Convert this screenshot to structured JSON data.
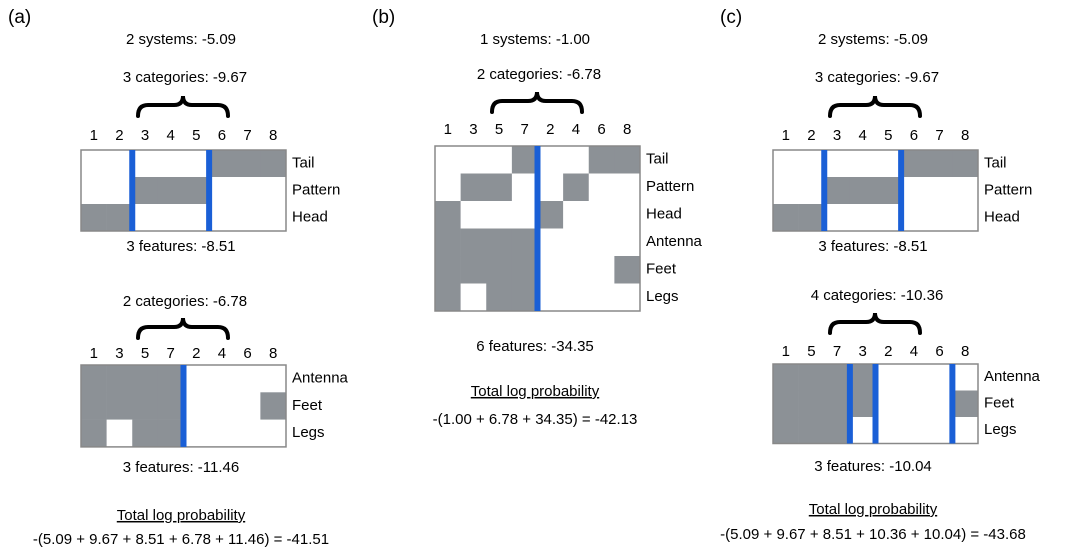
{
  "panels": [
    {
      "label": "(a)",
      "systems": "2 systems: -5.09",
      "blocks": [
        {
          "categories": "3 categories: -9.67",
          "columns": [
            1,
            2,
            3,
            4,
            5,
            6,
            7,
            8
          ],
          "groups": [
            2,
            3,
            3
          ],
          "rows": [
            {
              "name": "Tail",
              "cells": [
                0,
                0,
                0,
                0,
                0,
                1,
                1,
                1
              ]
            },
            {
              "name": "Pattern",
              "cells": [
                0,
                0,
                1,
                1,
                1,
                0,
                0,
                0
              ]
            },
            {
              "name": "Head",
              "cells": [
                1,
                1,
                0,
                0,
                0,
                0,
                0,
                0
              ]
            }
          ],
          "features": "3 features: -8.51"
        },
        {
          "categories": "2 categories: -6.78",
          "columns": [
            1,
            3,
            5,
            7,
            2,
            4,
            6,
            8
          ],
          "groups": [
            4,
            4
          ],
          "rows": [
            {
              "name": "Antenna",
              "cells": [
                1,
                1,
                1,
                1,
                0,
                0,
                0,
                0
              ]
            },
            {
              "name": "Feet",
              "cells": [
                1,
                1,
                1,
                1,
                0,
                0,
                0,
                1
              ]
            },
            {
              "name": "Legs",
              "cells": [
                1,
                0,
                1,
                1,
                0,
                0,
                0,
                0
              ]
            }
          ],
          "features": "3 features: -11.46"
        }
      ],
      "total_label": "Total log probability",
      "total": "-(5.09 + 9.67 + 8.51 + 6.78 + 11.46) = -41.51"
    },
    {
      "label": "(b)",
      "systems": "1 systems: -1.00",
      "blocks": [
        {
          "categories": "2 categories: -6.78",
          "columns": [
            1,
            3,
            5,
            7,
            2,
            4,
            6,
            8
          ],
          "groups": [
            4,
            4
          ],
          "rows": [
            {
              "name": "Tail",
              "cells": [
                0,
                0,
                0,
                1,
                0,
                0,
                1,
                1
              ]
            },
            {
              "name": "Pattern",
              "cells": [
                0,
                1,
                1,
                0,
                0,
                1,
                0,
                0
              ]
            },
            {
              "name": "Head",
              "cells": [
                1,
                0,
                0,
                0,
                1,
                0,
                0,
                0
              ]
            },
            {
              "name": "Antenna",
              "cells": [
                1,
                1,
                1,
                1,
                0,
                0,
                0,
                0
              ]
            },
            {
              "name": "Feet",
              "cells": [
                1,
                1,
                1,
                1,
                0,
                0,
                0,
                1
              ]
            },
            {
              "name": "Legs",
              "cells": [
                1,
                0,
                1,
                1,
                0,
                0,
                0,
                0
              ]
            }
          ],
          "features": "6 features: -34.35"
        }
      ],
      "total_label": "Total log probability",
      "total": "-(1.00 + 6.78 + 34.35) = -42.13"
    },
    {
      "label": "(c)",
      "systems": "2 systems: -5.09",
      "blocks": [
        {
          "categories": "3 categories: -9.67",
          "columns": [
            1,
            2,
            3,
            4,
            5,
            6,
            7,
            8
          ],
          "groups": [
            2,
            3,
            3
          ],
          "rows": [
            {
              "name": "Tail",
              "cells": [
                0,
                0,
                0,
                0,
                0,
                1,
                1,
                1
              ]
            },
            {
              "name": "Pattern",
              "cells": [
                0,
                0,
                1,
                1,
                1,
                0,
                0,
                0
              ]
            },
            {
              "name": "Head",
              "cells": [
                1,
                1,
                0,
                0,
                0,
                0,
                0,
                0
              ]
            }
          ],
          "features": "3 features: -8.51"
        },
        {
          "categories": "4 categories: -10.36",
          "columns": [
            1,
            5,
            7,
            3,
            2,
            4,
            6,
            8
          ],
          "groups": [
            3,
            1,
            3,
            1
          ],
          "rows": [
            {
              "name": "Antenna",
              "cells": [
                1,
                1,
                1,
                1,
                0,
                0,
                0,
                0
              ]
            },
            {
              "name": "Feet",
              "cells": [
                1,
                1,
                1,
                1,
                0,
                0,
                0,
                1
              ]
            },
            {
              "name": "Legs",
              "cells": [
                1,
                1,
                1,
                0,
                0,
                0,
                0,
                0
              ]
            }
          ],
          "features": "3 features: -10.04"
        }
      ],
      "total_label": "Total log probability",
      "total": "-(5.09 + 9.67 + 8.51 + 10.36 + 10.04) = -43.68"
    }
  ]
}
